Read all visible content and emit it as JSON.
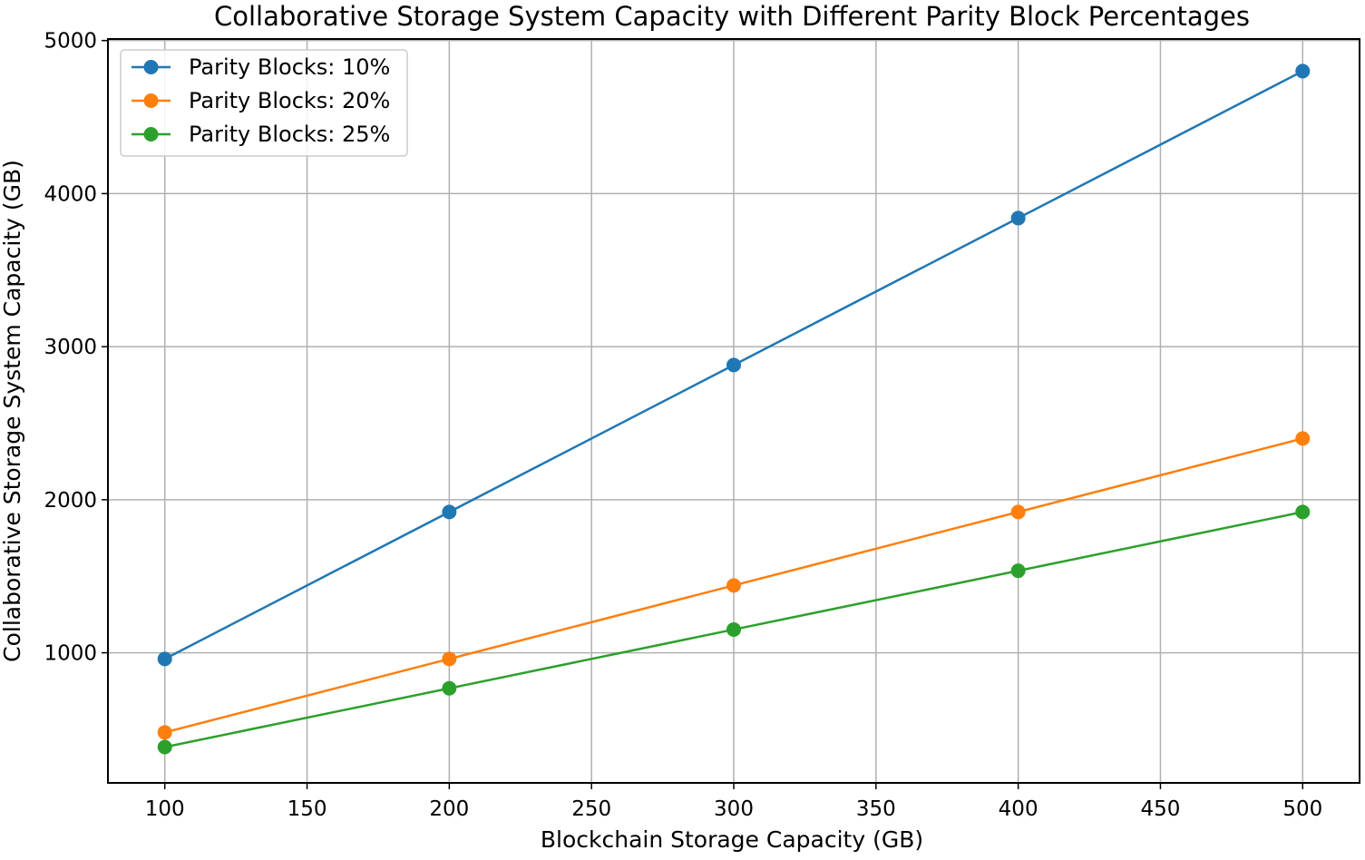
{
  "chart_data": {
    "type": "line",
    "title": "Collaborative Storage System Capacity with Different Parity Block Percentages",
    "xlabel": "Blockchain Storage Capacity (GB)",
    "ylabel": "Collaborative Storage System Capacity (GB)",
    "x": [
      100,
      200,
      300,
      400,
      500
    ],
    "xticks": [
      100,
      150,
      200,
      250,
      300,
      350,
      400,
      450,
      500
    ],
    "yticks": [
      1000,
      2000,
      3000,
      4000,
      5000
    ],
    "xlim": [
      80,
      520
    ],
    "ylim": [
      150,
      5010
    ],
    "grid": true,
    "legend_position": "top-left",
    "marker": "circle",
    "series": [
      {
        "name": "Parity Blocks: 10%",
        "color": "#1f77b4",
        "values": [
          960,
          1920,
          2880,
          3840,
          4800
        ]
      },
      {
        "name": "Parity Blocks: 20%",
        "color": "#ff7f0e",
        "values": [
          480,
          960,
          1440,
          1920,
          2400
        ]
      },
      {
        "name": "Parity Blocks: 25%",
        "color": "#2ca02c",
        "values": [
          384,
          768,
          1152,
          1536,
          1920
        ]
      }
    ]
  }
}
